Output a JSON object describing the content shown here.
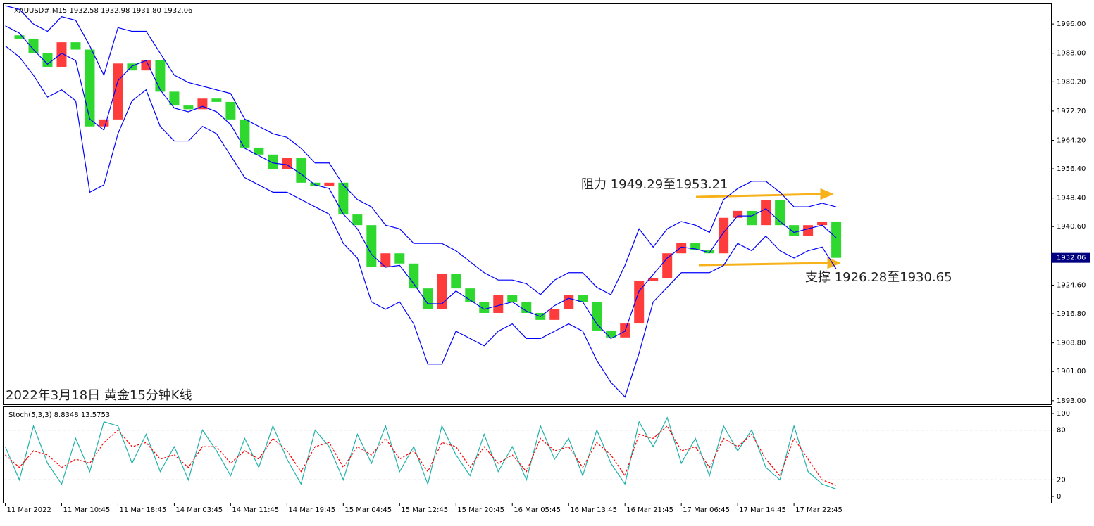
{
  "chart_data": [
    {
      "type": "candlestick",
      "title": "XAUUSD#,M15 1932.58 1932.98 1931.80 1932.06",
      "caption": "2022年3月18日 黄金15分钟K线",
      "annotations": [
        "阻力 1949.29至1953.21",
        "支撑 1926.28至1930.65"
      ],
      "x": [
        0,
        8,
        16,
        24,
        32,
        40,
        48,
        56,
        64,
        72,
        80,
        88,
        96,
        104,
        112,
        120,
        128,
        136,
        144,
        152,
        160,
        168,
        176,
        184,
        192,
        200,
        208,
        216,
        224,
        232,
        240,
        248,
        256,
        264,
        272,
        280,
        288,
        296,
        304,
        312,
        320,
        328,
        336,
        344,
        352,
        360,
        368,
        376,
        384,
        392,
        400,
        408,
        416,
        424,
        432,
        440,
        448,
        456,
        464,
        472
      ],
      "close": [
        1992.9,
        1992,
        1988.1,
        1984.3,
        1991,
        1989,
        1968,
        1969.9,
        1985.2,
        1983.3,
        1986.2,
        1977.5,
        1973.7,
        1972.7,
        1975.6,
        1974.7,
        1969.9,
        1962.2,
        1960.3,
        1956.4,
        1959.3,
        1952.6,
        1951.6,
        1952.6,
        1943.9,
        1941,
        1929.5,
        1933.3,
        1930.5,
        1923.7,
        1918,
        1927.6,
        1923.7,
        1919.9,
        1917,
        1921.8,
        1919.9,
        1917,
        1915.1,
        1918,
        1921.8,
        1919.9,
        1912.2,
        1910.3,
        1914.1,
        1925.7,
        1926.6,
        1933.3,
        1936.2,
        1934.3,
        1933.3,
        1943,
        1944.9,
        1941,
        1947.8,
        1941,
        1938.1,
        1941,
        1942,
        1932.06
      ],
      "up_color": "#ff3c3c",
      "down_color": "#2fd82f",
      "series": [
        {
          "name": "upper",
          "color": "#0000ff",
          "values": [
            2001,
            2000,
            1996,
            1994,
            1998,
            1997,
            1990,
            1982,
            1995,
            1994,
            1994,
            1988,
            1982,
            1980,
            1979,
            1978,
            1977,
            1970,
            1968,
            1966,
            1965,
            1962,
            1958,
            1958,
            1952,
            1948,
            1946,
            1941,
            1940,
            1936,
            1936,
            1936,
            1934,
            1931,
            1928,
            1926,
            1926,
            1925,
            1922,
            1926,
            1928,
            1928,
            1924,
            1922,
            1930,
            1940,
            1935,
            1940,
            1942,
            1941,
            1939,
            1948,
            1951,
            1953,
            1953,
            1950,
            1946,
            1946,
            1947,
            1946
          ]
        },
        {
          "name": "middle",
          "color": "#0000ff",
          "values": [
            1995.5,
            1993.5,
            1989,
            1985,
            1988,
            1986,
            1970,
            1967,
            1980.5,
            1984.5,
            1986,
            1978,
            1973,
            1972,
            1973.5,
            1972,
            1968.5,
            1962,
            1960,
            1958,
            1957.5,
            1955,
            1952,
            1951,
            1944,
            1940,
            1933,
            1929.5,
            1930,
            1925,
            1919.5,
            1919.5,
            1923,
            1920.5,
            1918,
            1919,
            1920,
            1917.5,
            1916,
            1919,
            1921,
            1920,
            1914,
            1910,
            1912,
            1923,
            1927.5,
            1932,
            1935,
            1934.5,
            1933.5,
            1939,
            1943.5,
            1943.5,
            1945.5,
            1942,
            1939,
            1940,
            1941,
            1937.5
          ]
        },
        {
          "name": "lower",
          "color": "#0000ff",
          "values": [
            1990,
            1987,
            1982,
            1976,
            1978,
            1975,
            1950,
            1952,
            1966,
            1975,
            1978,
            1968,
            1964,
            1964,
            1968,
            1966,
            1960,
            1954,
            1952,
            1950,
            1950,
            1948,
            1946,
            1944,
            1936,
            1932,
            1920,
            1918,
            1920,
            1914,
            1903,
            1903,
            1912,
            1910,
            1908,
            1912,
            1914,
            1910,
            1910,
            1912,
            1914,
            1912,
            1904,
            1898,
            1894,
            1906,
            1920,
            1924,
            1928,
            1928,
            1928,
            1930,
            1936,
            1934,
            1938,
            1934,
            1932,
            1934,
            1935,
            1929
          ]
        }
      ],
      "last_price": 1932.06,
      "xlim": [
        -1,
        594
      ],
      "ylim": [
        1892.0,
        2001.6
      ],
      "yticks": [
        {
          "value": 1996,
          "label": "1996.00"
        },
        {
          "value": 1988,
          "label": "1988.00"
        },
        {
          "value": 1980.2,
          "label": "1980.20"
        },
        {
          "value": 1972.2,
          "label": "1972.20"
        },
        {
          "value": 1964.2,
          "label": "1964.20"
        },
        {
          "value": 1956.4,
          "label": "1956.40"
        },
        {
          "value": 1948.4,
          "label": "1948.40"
        },
        {
          "value": 1940.6,
          "label": "1940.60"
        },
        {
          "value": 1924.6,
          "label": "1924.60"
        },
        {
          "value": 1916.8,
          "label": "1916.80"
        },
        {
          "value": 1908.8,
          "label": "1908.80"
        },
        {
          "value": 1901,
          "label": "1901.00"
        },
        {
          "value": 1893,
          "label": "1893.00"
        }
      ]
    },
    {
      "type": "line",
      "title": "Stoch(5,3,3) 8.8348 13.5753",
      "x": [
        0,
        8,
        16,
        24,
        32,
        40,
        48,
        56,
        64,
        72,
        80,
        88,
        96,
        104,
        112,
        120,
        128,
        136,
        144,
        152,
        160,
        168,
        176,
        184,
        192,
        200,
        208,
        216,
        224,
        232,
        240,
        248,
        256,
        264,
        272,
        280,
        288,
        296,
        304,
        312,
        320,
        328,
        336,
        344,
        352,
        360,
        368,
        376,
        384,
        392,
        400,
        408,
        416,
        424,
        432,
        440,
        448,
        456,
        464,
        472
      ],
      "series": [
        {
          "name": "%K",
          "color": "#20b2aa",
          "values": [
            60,
            20,
            85,
            40,
            15,
            70,
            30,
            90,
            85,
            40,
            75,
            30,
            60,
            20,
            80,
            55,
            25,
            70,
            35,
            85,
            45,
            15,
            80,
            60,
            20,
            75,
            40,
            85,
            30,
            60,
            15,
            85,
            50,
            25,
            75,
            30,
            60,
            20,
            85,
            45,
            70,
            25,
            80,
            40,
            15,
            90,
            60,
            95,
            40,
            70,
            25,
            85,
            55,
            80,
            35,
            20,
            85,
            30,
            15,
            8.8348
          ]
        },
        {
          "name": "%D",
          "color": "#ff0000",
          "dashed": true,
          "values": [
            50,
            35,
            55,
            50,
            35,
            45,
            40,
            65,
            80,
            60,
            65,
            45,
            50,
            35,
            60,
            60,
            40,
            55,
            45,
            70,
            55,
            30,
            60,
            65,
            35,
            60,
            50,
            70,
            45,
            55,
            30,
            65,
            60,
            35,
            60,
            40,
            50,
            30,
            70,
            55,
            60,
            35,
            65,
            50,
            25,
            75,
            70,
            85,
            55,
            60,
            35,
            70,
            60,
            75,
            45,
            25,
            70,
            45,
            20,
            13.5753
          ]
        }
      ],
      "xlim": [
        -1,
        594
      ],
      "ylim": [
        -7.6,
        107.6
      ],
      "yticks": [
        100,
        80,
        20,
        0
      ],
      "grid_levels": [
        80,
        20
      ],
      "xticks": [
        {
          "value": 0,
          "label": "11 Mar 2022"
        },
        {
          "value": 32,
          "label": "11 Mar 10:45"
        },
        {
          "value": 64,
          "label": "11 Mar 18:45"
        },
        {
          "value": 96,
          "label": "14 Mar 03:45"
        },
        {
          "value": 128,
          "label": "14 Mar 11:45"
        },
        {
          "value": 160,
          "label": "14 Mar 19:45"
        },
        {
          "value": 192,
          "label": "15 Mar 04:45"
        },
        {
          "value": 224,
          "label": "15 Mar 12:45"
        },
        {
          "value": 256,
          "label": "15 Mar 20:45"
        },
        {
          "value": 288,
          "label": "16 Mar 05:45"
        },
        {
          "value": 320,
          "label": "16 Mar 13:45"
        },
        {
          "value": 352,
          "label": "16 Mar 21:45"
        },
        {
          "value": 384,
          "label": "17 Mar 06:45"
        },
        {
          "value": 416,
          "label": "17 Mar 14:45"
        },
        {
          "value": 448,
          "label": "17 Mar 22:45"
        }
      ]
    }
  ]
}
